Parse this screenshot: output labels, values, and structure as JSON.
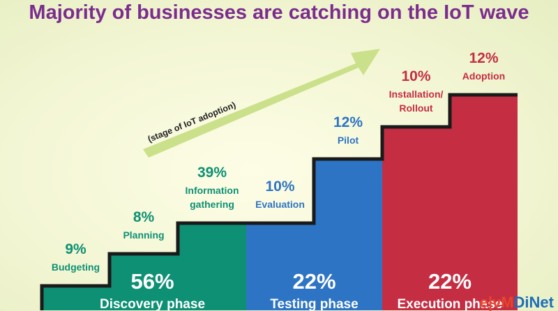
{
  "title": "Majority of businesses are catching on the IoT wave",
  "arrow_label": "(stage of IoT adoption)",
  "colors": {
    "title": "#7b2d8e",
    "discovery": "#0e9074",
    "testing": "#2e74c4",
    "execution": "#c52d43",
    "arrow": "#cbe08a"
  },
  "chart_data": {
    "type": "bar",
    "title": "Majority of businesses are catching on the IoT wave",
    "categories": [
      "Budgeting",
      "Planning",
      "Information gathering",
      "Evaluation",
      "Pilot",
      "Installation/ Rollout",
      "Adoption"
    ],
    "values": [
      9,
      8,
      39,
      10,
      12,
      10,
      12
    ],
    "value_labels": [
      "9%",
      "8%",
      "39%",
      "10%",
      "12%",
      "10%",
      "12%"
    ],
    "stages": [
      {
        "pct": "9%",
        "label_lines": [
          "Budgeting"
        ],
        "phase": 0
      },
      {
        "pct": "8%",
        "label_lines": [
          "Planning"
        ],
        "phase": 0
      },
      {
        "pct": "39%",
        "label_lines": [
          "Information",
          "gathering"
        ],
        "phase": 0
      },
      {
        "pct": "10%",
        "label_lines": [
          "Evaluation"
        ],
        "phase": 1
      },
      {
        "pct": "12%",
        "label_lines": [
          "Pilot"
        ],
        "phase": 1
      },
      {
        "pct": "10%",
        "label_lines": [
          "Installation/",
          "Rollout"
        ],
        "phase": 2
      },
      {
        "pct": "12%",
        "label_lines": [
          "Adoption"
        ],
        "phase": 2
      }
    ],
    "phases": [
      {
        "name": "Discovery phase",
        "value": 56,
        "pct": "56%"
      },
      {
        "name": "Testing phase",
        "value": 22,
        "pct": "22%"
      },
      {
        "name": "Execution phase",
        "value": 22,
        "pct": "22%"
      }
    ],
    "grid": false
  },
  "watermark": {
    "part1": "e|vM",
    "part2": "DiNet"
  }
}
